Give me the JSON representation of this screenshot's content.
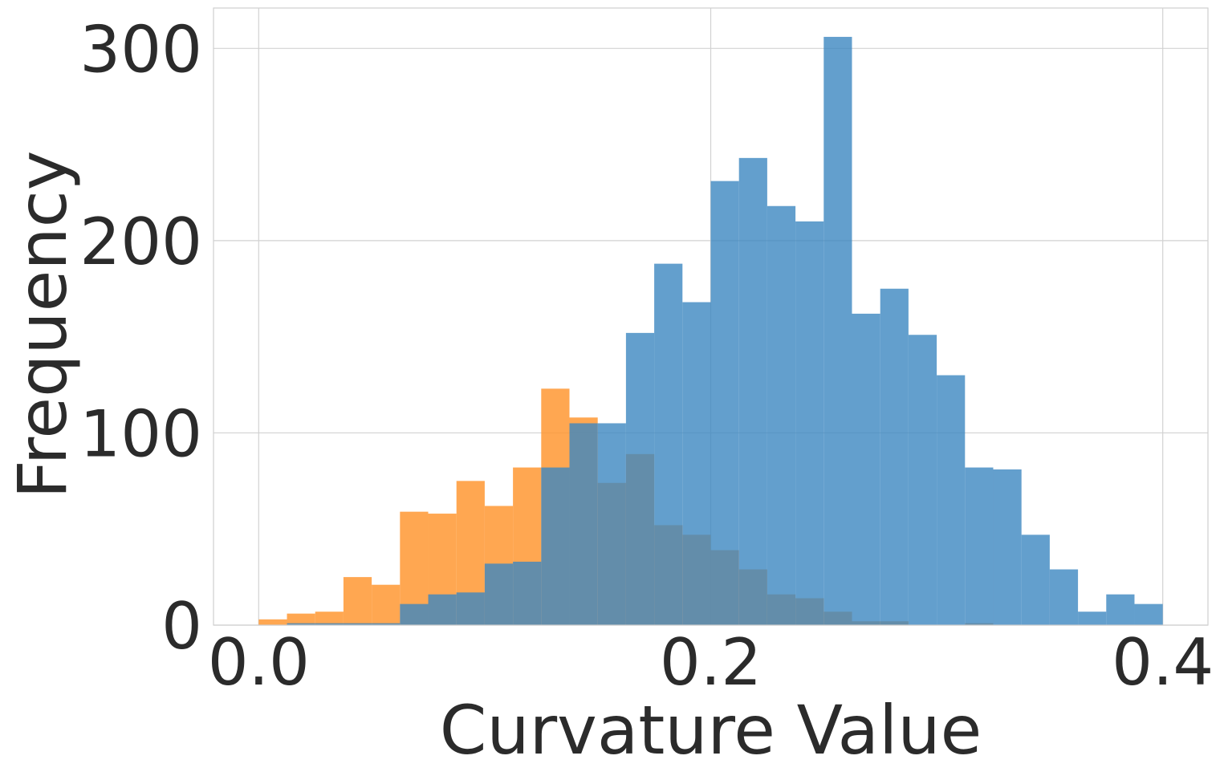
{
  "chart_data": {
    "type": "histogram",
    "xlabel": "Curvature Value",
    "ylabel": "Frequency",
    "xlim": [
      -0.02,
      0.42
    ],
    "ylim": [
      0,
      321
    ],
    "xticks": [
      0.0,
      0.2,
      0.4
    ],
    "xtick_labels": [
      "0.0",
      "0.2",
      "0.4"
    ],
    "yticks": [
      0,
      100,
      200,
      300
    ],
    "ytick_labels": [
      "0",
      "100",
      "200",
      "300"
    ],
    "grid": true,
    "legend": "none",
    "series": [
      {
        "color": "#ff9833",
        "opacity": 0.85,
        "bins": [
          {
            "x0": 0.0,
            "x1": 0.0125,
            "value": 3
          },
          {
            "x0": 0.0125,
            "x1": 0.025,
            "value": 6
          },
          {
            "x0": 0.025,
            "x1": 0.0375,
            "value": 7
          },
          {
            "x0": 0.0375,
            "x1": 0.05,
            "value": 25
          },
          {
            "x0": 0.05,
            "x1": 0.0625,
            "value": 21
          },
          {
            "x0": 0.0625,
            "x1": 0.075,
            "value": 59
          },
          {
            "x0": 0.075,
            "x1": 0.0875,
            "value": 58
          },
          {
            "x0": 0.0875,
            "x1": 0.1,
            "value": 75
          },
          {
            "x0": 0.1,
            "x1": 0.1125,
            "value": 62
          },
          {
            "x0": 0.1125,
            "x1": 0.125,
            "value": 82
          },
          {
            "x0": 0.125,
            "x1": 0.1375,
            "value": 123
          },
          {
            "x0": 0.1375,
            "x1": 0.15,
            "value": 108
          },
          {
            "x0": 0.15,
            "x1": 0.1625,
            "value": 74
          },
          {
            "x0": 0.1625,
            "x1": 0.175,
            "value": 89
          },
          {
            "x0": 0.175,
            "x1": 0.1875,
            "value": 52
          },
          {
            "x0": 0.1875,
            "x1": 0.2,
            "value": 47
          },
          {
            "x0": 0.2,
            "x1": 0.2125,
            "value": 39
          },
          {
            "x0": 0.2125,
            "x1": 0.225,
            "value": 29
          },
          {
            "x0": 0.225,
            "x1": 0.2375,
            "value": 16
          },
          {
            "x0": 0.2375,
            "x1": 0.25,
            "value": 14
          },
          {
            "x0": 0.25,
            "x1": 0.2625,
            "value": 7
          },
          {
            "x0": 0.2625,
            "x1": 0.275,
            "value": 2
          },
          {
            "x0": 0.275,
            "x1": 0.2875,
            "value": 2
          },
          {
            "x0": 0.3125,
            "x1": 0.325,
            "value": 1
          }
        ]
      },
      {
        "color": "#3c87c0",
        "opacity": 0.8,
        "bins": [
          {
            "x0": 0.0125,
            "x1": 0.025,
            "value": 1
          },
          {
            "x0": 0.025,
            "x1": 0.0375,
            "value": 1
          },
          {
            "x0": 0.0375,
            "x1": 0.05,
            "value": 1
          },
          {
            "x0": 0.05,
            "x1": 0.0625,
            "value": 1
          },
          {
            "x0": 0.0625,
            "x1": 0.075,
            "value": 11
          },
          {
            "x0": 0.075,
            "x1": 0.0875,
            "value": 16
          },
          {
            "x0": 0.0875,
            "x1": 0.1,
            "value": 17
          },
          {
            "x0": 0.1,
            "x1": 0.1125,
            "value": 32
          },
          {
            "x0": 0.1125,
            "x1": 0.125,
            "value": 33
          },
          {
            "x0": 0.125,
            "x1": 0.1375,
            "value": 82
          },
          {
            "x0": 0.1375,
            "x1": 0.15,
            "value": 105
          },
          {
            "x0": 0.15,
            "x1": 0.1625,
            "value": 105
          },
          {
            "x0": 0.1625,
            "x1": 0.175,
            "value": 152
          },
          {
            "x0": 0.175,
            "x1": 0.1875,
            "value": 188
          },
          {
            "x0": 0.1875,
            "x1": 0.2,
            "value": 168
          },
          {
            "x0": 0.2,
            "x1": 0.2125,
            "value": 231
          },
          {
            "x0": 0.2125,
            "x1": 0.225,
            "value": 243
          },
          {
            "x0": 0.225,
            "x1": 0.2375,
            "value": 218
          },
          {
            "x0": 0.2375,
            "x1": 0.25,
            "value": 210
          },
          {
            "x0": 0.25,
            "x1": 0.2625,
            "value": 306
          },
          {
            "x0": 0.2625,
            "x1": 0.275,
            "value": 162
          },
          {
            "x0": 0.275,
            "x1": 0.2875,
            "value": 175
          },
          {
            "x0": 0.2875,
            "x1": 0.3,
            "value": 151
          },
          {
            "x0": 0.3,
            "x1": 0.3125,
            "value": 130
          },
          {
            "x0": 0.3125,
            "x1": 0.325,
            "value": 82
          },
          {
            "x0": 0.325,
            "x1": 0.3375,
            "value": 81
          },
          {
            "x0": 0.3375,
            "x1": 0.35,
            "value": 47
          },
          {
            "x0": 0.35,
            "x1": 0.3625,
            "value": 29
          },
          {
            "x0": 0.3625,
            "x1": 0.375,
            "value": 7
          },
          {
            "x0": 0.375,
            "x1": 0.3875,
            "value": 16
          },
          {
            "x0": 0.3875,
            "x1": 0.4,
            "value": 11
          }
        ]
      }
    ]
  }
}
